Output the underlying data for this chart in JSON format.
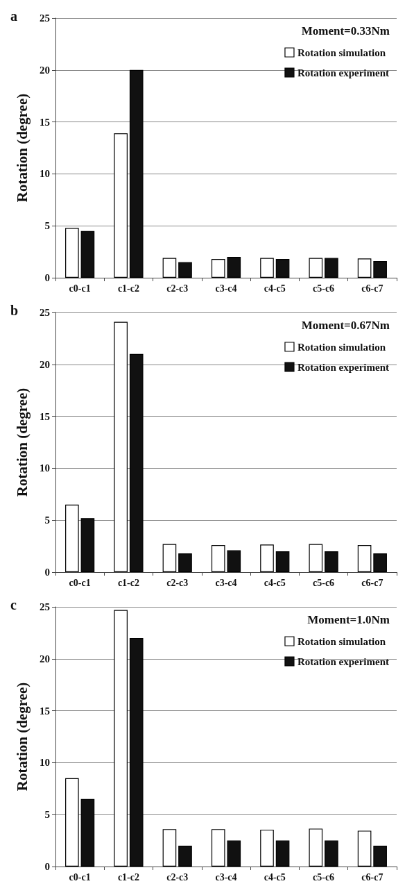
{
  "chart_data": [
    {
      "type": "bar",
      "title": "a",
      "ylabel": "Rotation (degree)",
      "annotations": [
        "Moment=0.33Nm"
      ],
      "categories": [
        "c0-c1",
        "c1-c2",
        "c2-c3",
        "c3-c4",
        "c4-c5",
        "c5-c6",
        "c6-c7"
      ],
      "series": [
        {
          "name": "Rotation simulation",
          "color": "#ffffff",
          "values": [
            4.8,
            13.9,
            1.9,
            1.8,
            1.9,
            1.9,
            1.85
          ]
        },
        {
          "name": "Rotation experiment",
          "color": "#111111",
          "values": [
            4.5,
            20,
            1.5,
            2.0,
            1.8,
            1.9,
            1.6
          ]
        }
      ],
      "ylim": [
        0,
        25
      ],
      "yticks": [
        0,
        5,
        10,
        15,
        20,
        25
      ],
      "grid": "y",
      "legend": "top right"
    },
    {
      "type": "bar",
      "title": "b",
      "ylabel": "Rotation (degree)",
      "annotations": [
        "Moment=0.67Nm"
      ],
      "categories": [
        "c0-c1",
        "c1-c2",
        "c2-c3",
        "c3-c4",
        "c4-c5",
        "c5-c6",
        "c6-c7"
      ],
      "series": [
        {
          "name": "Rotation simulation",
          "color": "#ffffff",
          "values": [
            6.5,
            24.1,
            2.7,
            2.6,
            2.65,
            2.7,
            2.6
          ]
        },
        {
          "name": "Rotation experiment",
          "color": "#111111",
          "values": [
            5.2,
            21,
            1.8,
            2.1,
            2.0,
            2.0,
            1.8
          ]
        }
      ],
      "ylim": [
        0,
        25
      ],
      "yticks": [
        0,
        5,
        10,
        15,
        20,
        25
      ],
      "grid": "y",
      "legend": "top right"
    },
    {
      "type": "bar",
      "title": "c",
      "ylabel": "Rotation (degree)",
      "annotations": [
        "Moment=1.0Nm"
      ],
      "categories": [
        "c0-c1",
        "c1-c2",
        "c2-c3",
        "c3-c4",
        "c4-c5",
        "c5-c6",
        "c6-c7"
      ],
      "series": [
        {
          "name": "Rotation simulation",
          "color": "#ffffff",
          "values": [
            8.5,
            24.7,
            3.6,
            3.6,
            3.55,
            3.65,
            3.45
          ]
        },
        {
          "name": "Rotation experiment",
          "color": "#111111",
          "values": [
            6.5,
            22,
            2.0,
            2.5,
            2.5,
            2.5,
            2.0
          ]
        }
      ],
      "ylim": [
        0,
        25
      ],
      "yticks": [
        0,
        5,
        10,
        15,
        20,
        25
      ],
      "grid": "y",
      "legend": "top right"
    }
  ]
}
